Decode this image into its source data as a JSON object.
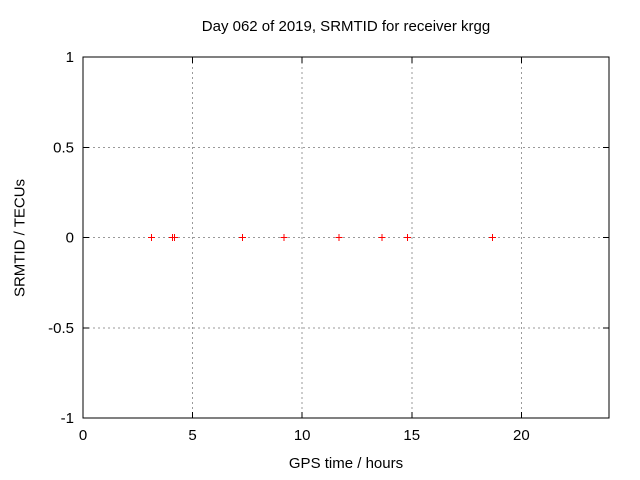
{
  "page": {
    "background_color": "#ffffff"
  },
  "chart_data": {
    "type": "scatter",
    "title": "Day 062 of 2019, SRMTID for receiver krgg",
    "xlabel": "GPS time / hours",
    "ylabel": "SRMTID / TECUs",
    "xlim": [
      0,
      24
    ],
    "ylim": [
      -1,
      1
    ],
    "xticks": [
      0,
      5,
      10,
      15,
      20
    ],
    "yticks": [
      -1,
      -0.5,
      0,
      0.5,
      1
    ],
    "grid": true,
    "legend_position": "none",
    "marker": "plus",
    "marker_color": "#ff0000",
    "grid_color": "#9a9a9a",
    "axis_color": "#000000",
    "series": [
      {
        "name": "SRMTID",
        "x": [
          3.12,
          4.08,
          4.17,
          7.27,
          9.18,
          11.69,
          13.64,
          14.81,
          18.68
        ],
        "y": [
          0,
          0,
          0,
          0,
          0,
          0,
          0,
          0,
          0
        ]
      }
    ]
  }
}
